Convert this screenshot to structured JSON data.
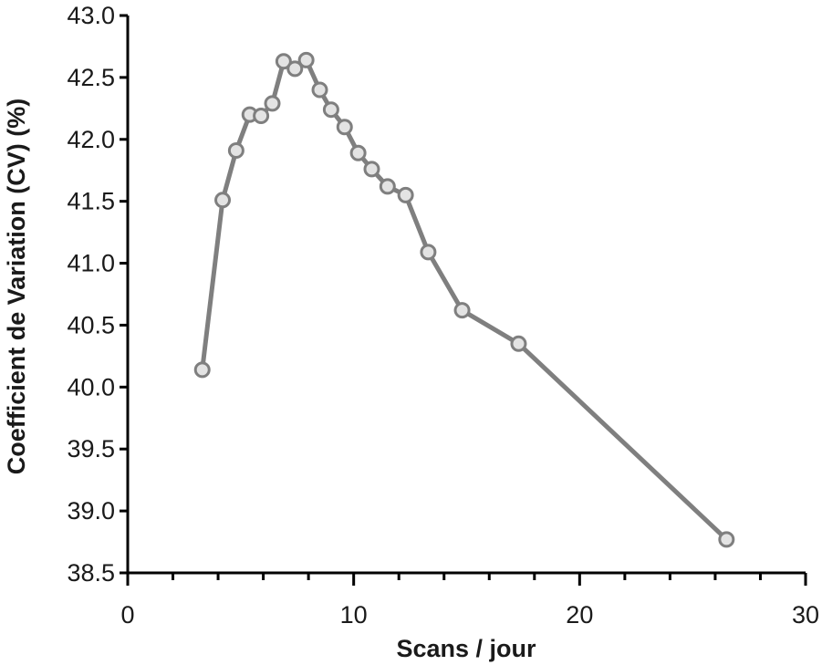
{
  "chart_data": {
    "type": "line",
    "title": "",
    "xlabel": "Scans / jour",
    "ylabel": "Coefficient de Variation (CV) (%)",
    "xlim": [
      0,
      30
    ],
    "ylim": [
      38.5,
      43.0
    ],
    "x_ticks": [
      "0",
      "10",
      "20",
      "30"
    ],
    "y_ticks": [
      "38.5",
      "39.0",
      "39.5",
      "40.0",
      "40.5",
      "41.0",
      "41.5",
      "42.0",
      "42.5",
      "43.0"
    ],
    "x_major_step": 10,
    "x_minor_step": 2,
    "y_major_step": 0.5,
    "grid": false,
    "legend": "none",
    "colors": {
      "series_line": "#7f7f7f",
      "marker_edge": "#7f7f7f",
      "marker_fill": "#e3e3e3",
      "axis": "#000000"
    },
    "series": [
      {
        "x": [
          3.3,
          4.2,
          4.8,
          5.4,
          5.9,
          6.4,
          6.9,
          7.4,
          7.9,
          8.5,
          9.0,
          9.6,
          10.2,
          10.8,
          11.5,
          12.3,
          13.3,
          14.8,
          17.3,
          26.5
        ],
        "y": [
          40.14,
          41.51,
          41.91,
          42.2,
          42.19,
          42.29,
          42.63,
          42.57,
          42.64,
          42.4,
          42.24,
          42.1,
          41.89,
          41.76,
          41.62,
          41.55,
          41.09,
          40.62,
          40.35,
          38.77
        ]
      }
    ]
  }
}
